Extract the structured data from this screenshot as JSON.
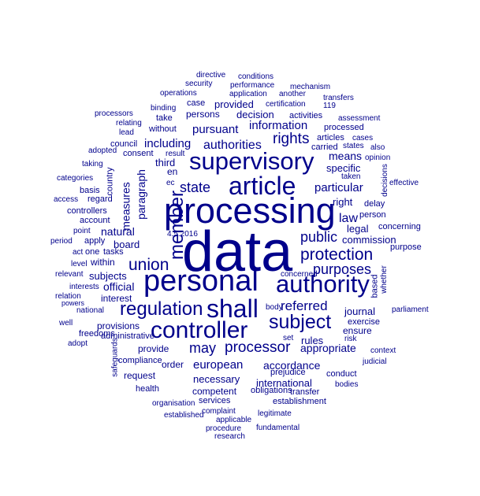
{
  "cloud": {
    "color": "#00008b",
    "words": [
      "data",
      "processing",
      "personal",
      "article",
      "supervisory",
      "controller",
      "shall",
      "authority",
      "regulation",
      "subject",
      "member",
      "protection",
      "union",
      "processor",
      "rights",
      "state",
      "authorities",
      "information",
      "european",
      "purposes",
      "referred",
      "public",
      "may",
      "particular",
      "including",
      "pursuant",
      "accordance",
      "appropriate",
      "necessary",
      "measures",
      "law",
      "means",
      "paragraph",
      "natural",
      "commission",
      "legal",
      "decision",
      "specific",
      "board",
      "provided",
      "third",
      "international",
      "competent",
      "subjects",
      "rules",
      "order",
      "official",
      "provide",
      "interest",
      "journal",
      "right",
      "persons",
      "ensure",
      "processed",
      "exercise",
      "processors",
      "establishment",
      "activities",
      "directive",
      "performance",
      "conditions",
      "security",
      "application",
      "mechanism",
      "operations",
      "another",
      "transfers",
      "case",
      "certification",
      "binding",
      "take",
      "lead",
      "relating",
      "without",
      "council",
      "result",
      "adopted",
      "consent",
      "taking",
      "categories",
      "country",
      "basis",
      "access",
      "regard",
      "controllers",
      "account",
      "point",
      "period",
      "apply",
      "act",
      "one",
      "tasks",
      "within",
      "level",
      "relevant",
      "interests",
      "relation",
      "powers",
      "national",
      "well",
      "freedoms",
      "administrative",
      "adopt",
      "safeguards",
      "request",
      "compliance",
      "health",
      "obligations",
      "organisation",
      "services",
      "established",
      "complaint",
      "applicable",
      "legitimate",
      "procedure",
      "fundamental",
      "research",
      "bodies",
      "conduct",
      "judicial",
      "context",
      "risk",
      "set",
      "body",
      "concerned",
      "prejudice",
      "parliament",
      "whether",
      "based",
      "purpose",
      "concerning",
      "person",
      "delay",
      "effective",
      "decisions",
      "taken",
      "opinion",
      "also",
      "states",
      "carried",
      "articles",
      "cases",
      "assessment",
      "119",
      "en",
      "ec",
      "4.5.2016",
      "provisions",
      "transfer"
    ]
  }
}
